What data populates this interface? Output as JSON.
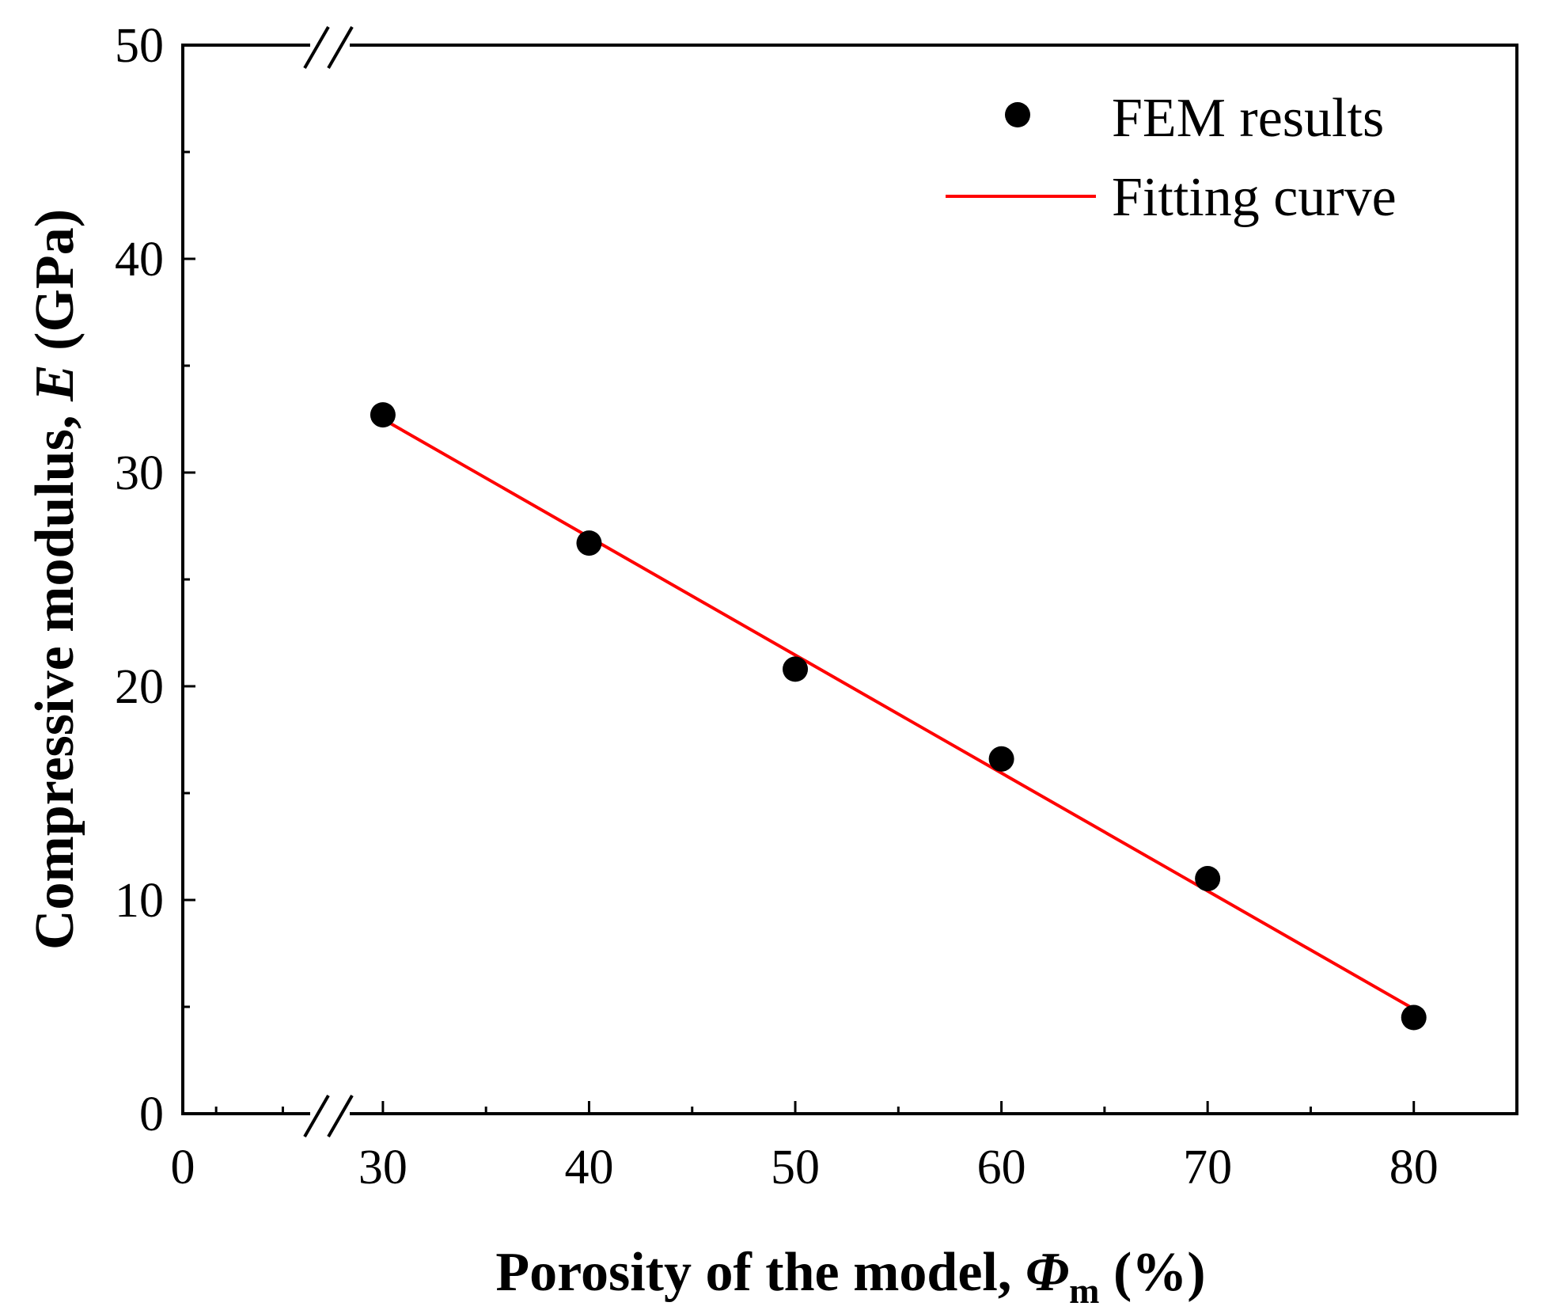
{
  "chart_data": {
    "type": "scatter",
    "title": "",
    "xlabel": {
      "prefix": "Porosity of the model, ",
      "symbol": "Φ",
      "subscript": "m",
      "suffix": " (%)"
    },
    "ylabel": {
      "prefix": "Compressive modulus, ",
      "symbol": "E",
      "suffix": " (GPa)"
    },
    "xlim": [
      0,
      85
    ],
    "ylim": [
      0,
      50
    ],
    "x_axis_break": {
      "from": 0,
      "to": 30,
      "visual_fraction": 0.15
    },
    "x_ticks": [
      0,
      30,
      40,
      50,
      60,
      70,
      80
    ],
    "x_minor_ticks": [
      5,
      35,
      45,
      55,
      65,
      75,
      85
    ],
    "y_ticks": [
      0,
      10,
      20,
      30,
      40,
      50
    ],
    "y_minor_ticks": [
      5,
      15,
      25,
      35,
      45
    ],
    "series": [
      {
        "name": "FEM results",
        "kind": "scatter",
        "color": "#000000",
        "x": [
          30,
          40,
          50,
          60,
          70,
          80
        ],
        "y": [
          32.7,
          26.7,
          20.8,
          16.6,
          11.0,
          4.5
        ]
      },
      {
        "name": "Fitting curve",
        "kind": "line",
        "color": "#ff0000",
        "x": [
          30,
          80
        ],
        "y": [
          32.5,
          4.9
        ]
      }
    ],
    "legend": {
      "position": "top-right",
      "entries": [
        "FEM results",
        "Fitting curve"
      ]
    }
  }
}
